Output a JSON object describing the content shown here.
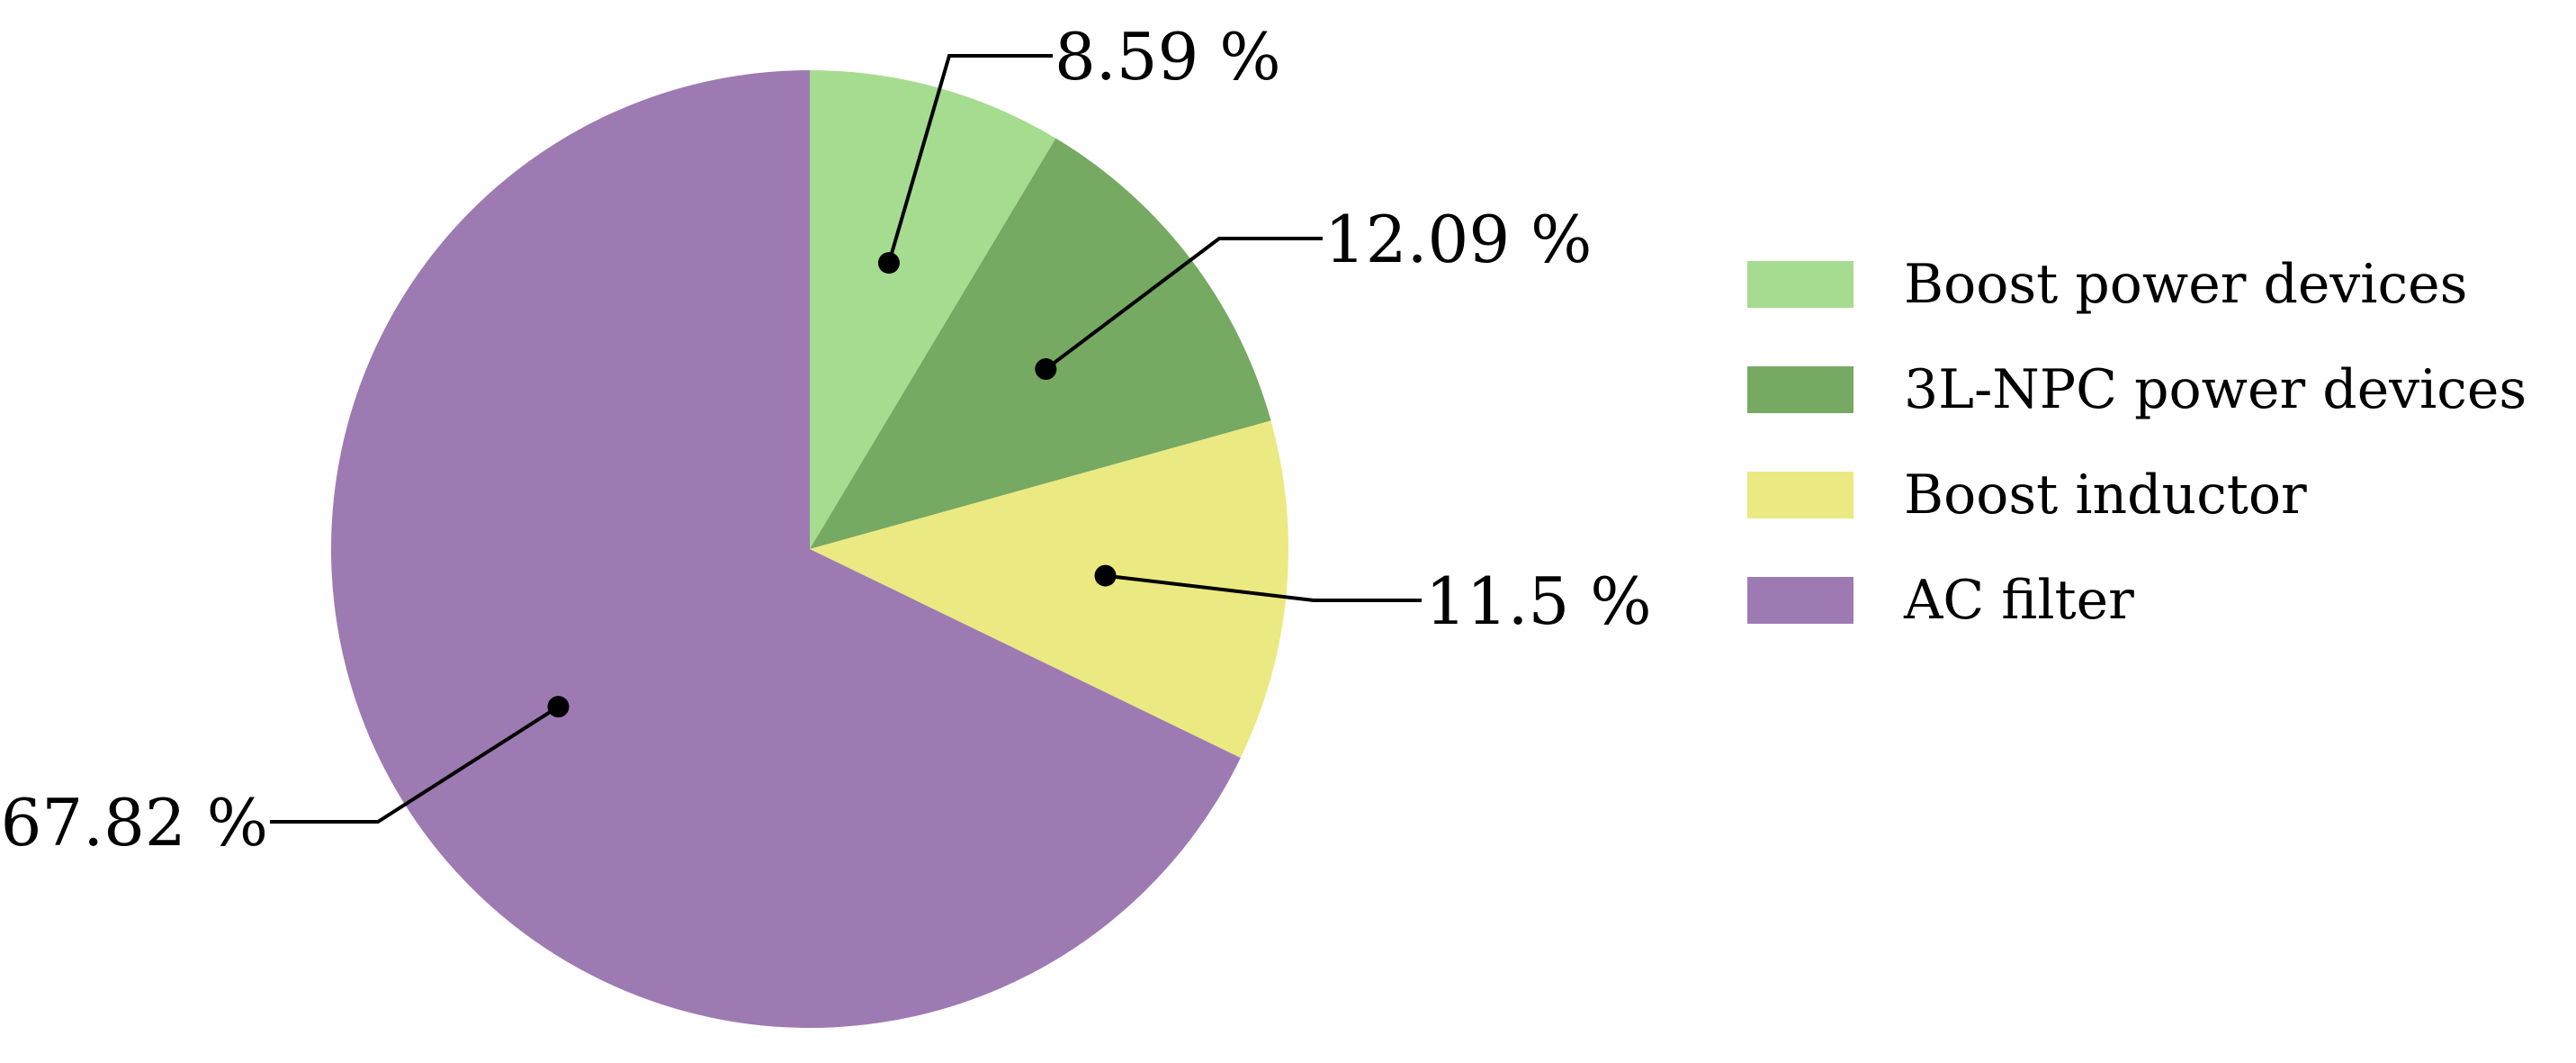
{
  "chart_data": {
    "type": "pie",
    "title": "",
    "start_angle": "top, clockwise",
    "slices": [
      {
        "name": "Boost power devices",
        "value": 8.59,
        "label": "8.59 %",
        "color": "#a6dc8f"
      },
      {
        "name": "3L-NPC power devices",
        "value": 12.09,
        "label": "12.09 %",
        "color": "#76a961"
      },
      {
        "name": "Boost inductor",
        "value": 11.5,
        "label": "11.5 %",
        "color": "#ebe981"
      },
      {
        "name": "AC filter",
        "value": 67.82,
        "label": "67.82 %",
        "color": "#9e7ab3"
      }
    ],
    "legend": {
      "placement": "right",
      "entries": [
        "Boost power devices",
        "3L-NPC power devices",
        "Boost inductor",
        "AC filter"
      ]
    }
  }
}
